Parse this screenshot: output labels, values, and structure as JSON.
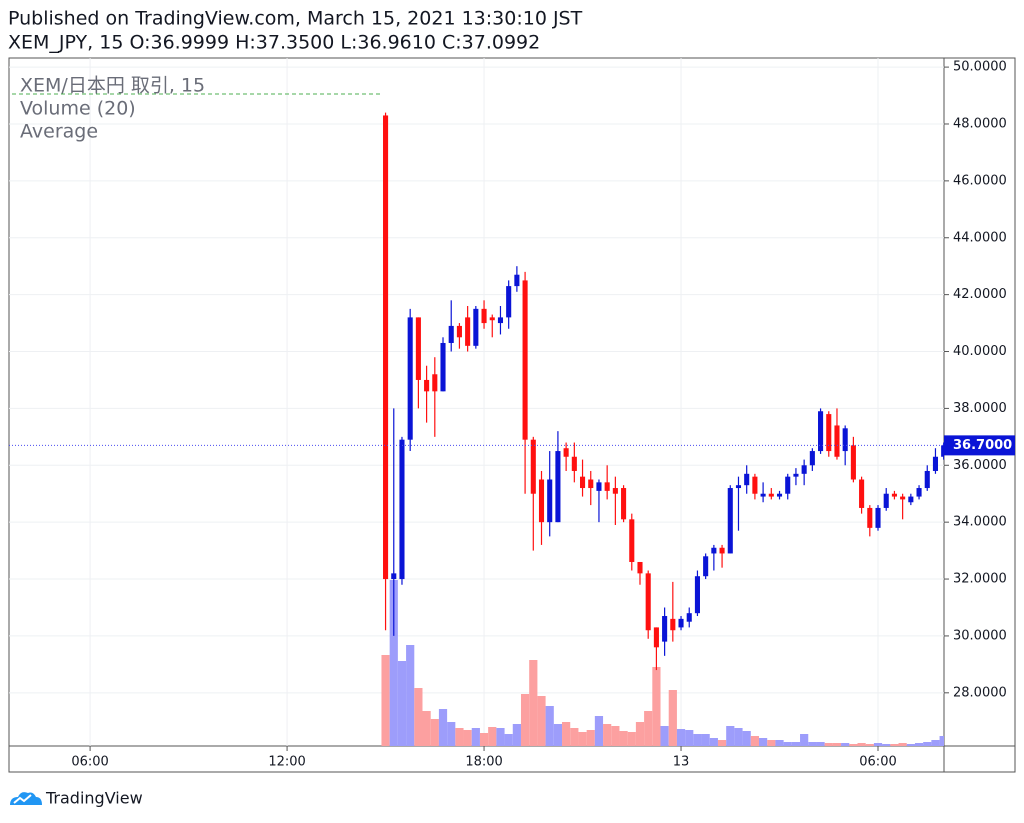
{
  "chart_data": {
    "type": "candlestick",
    "title": "Published on TradingView.com, March 15, 2021 13:30:10 JST",
    "subtitle": "XEM_JPY, 15 O:36.9999 H:37.3500 L:36.9610 C:37.0992",
    "legend": [
      "XEM/日本円 取引, 15",
      "Volume (20)",
      "Average"
    ],
    "brand": "TradingView",
    "up_color": "#0a14d6",
    "down_color": "#ff1010",
    "volume_up_color": "#9d9dfb",
    "volume_down_color": "#fca0a0",
    "x": [
      15,
      15.25,
      15.5,
      15.75,
      16,
      16.25,
      16.5,
      16.75,
      17,
      17.25,
      17.5,
      17.75,
      18,
      18.25,
      18.5,
      18.75,
      19,
      19.25,
      19.5,
      19.75,
      20,
      20.25,
      20.5,
      20.75,
      21,
      21.25,
      21.5,
      21.75,
      22,
      22.25,
      22.5,
      22.75,
      23,
      23.25,
      23.5,
      23.75,
      24,
      24.25,
      24.5,
      24.75,
      25,
      25.25,
      25.5,
      25.75,
      26,
      26.25,
      26.5,
      26.75,
      27,
      27.25,
      27.5,
      27.75,
      28,
      28.25,
      28.5,
      28.75,
      29,
      29.25,
      29.5,
      29.75,
      30,
      30.25,
      30.5,
      30.75,
      31,
      31.25,
      31.5,
      31.75,
      32
    ],
    "open": [
      48.3,
      32.0,
      32.0,
      36.9,
      41.2,
      39.0,
      39.2,
      38.6,
      40.3,
      40.9,
      41.2,
      40.2,
      41.5,
      41.2,
      41.0,
      41.2,
      42.3,
      42.5,
      36.9,
      35.5,
      34.0,
      34.0,
      36.6,
      36.3,
      35.6,
      35.5,
      35.1,
      35.4,
      35.2,
      35.2,
      34.1,
      32.6,
      32.2,
      30.3,
      29.8,
      30.6,
      30.3,
      30.5,
      30.8,
      32.1,
      32.9,
      33.1,
      32.9,
      35.2,
      35.3,
      35.6,
      34.9,
      35.0,
      34.9,
      35.0,
      35.6,
      35.7,
      36.0,
      36.5,
      37.8,
      37.4,
      36.5,
      36.7,
      35.5,
      34.5,
      33.8,
      34.5,
      35.0,
      34.9,
      34.7,
      34.9,
      35.2,
      35.8,
      36.3
    ],
    "high": [
      48.4,
      38.0,
      37.0,
      41.5,
      41.2,
      39.5,
      39.8,
      40.5,
      41.8,
      41.0,
      41.6,
      41.6,
      41.8,
      41.3,
      41.6,
      42.5,
      43.0,
      42.8,
      37.0,
      35.8,
      36.5,
      37.2,
      36.8,
      36.8,
      36.2,
      35.8,
      35.5,
      36.0,
      35.6,
      35.3,
      34.3,
      32.6,
      32.3,
      30.3,
      31.0,
      31.9,
      30.7,
      31.0,
      32.3,
      32.9,
      33.2,
      33.2,
      35.3,
      35.6,
      36.0,
      35.7,
      35.4,
      35.2,
      35.1,
      35.7,
      35.9,
      36.2,
      36.6,
      38.0,
      37.9,
      38.0,
      37.4,
      37.0,
      35.6,
      34.6,
      34.6,
      35.2,
      35.1,
      35.0,
      35.0,
      35.3,
      36.0,
      36.6,
      36.8
    ],
    "low": [
      30.2,
      30.0,
      31.8,
      36.5,
      38.0,
      37.5,
      37.0,
      38.6,
      40.0,
      40.1,
      40.0,
      40.1,
      40.8,
      40.5,
      40.6,
      40.8,
      42.1,
      35.0,
      33.0,
      33.2,
      33.5,
      34.0,
      35.8,
      35.4,
      34.9,
      34.6,
      34.0,
      34.8,
      33.9,
      34.0,
      32.3,
      31.8,
      29.9,
      28.8,
      29.3,
      29.8,
      30.2,
      30.3,
      30.7,
      32.0,
      32.3,
      32.4,
      32.9,
      33.7,
      35.0,
      34.8,
      34.7,
      34.8,
      34.8,
      34.8,
      35.3,
      35.3,
      35.8,
      36.4,
      36.3,
      36.2,
      36.0,
      35.4,
      34.3,
      33.5,
      33.7,
      34.4,
      34.8,
      34.1,
      34.6,
      34.8,
      35.1,
      35.7,
      36.2
    ],
    "close": [
      32.0,
      32.2,
      36.9,
      41.2,
      39.0,
      38.6,
      38.6,
      40.3,
      40.9,
      40.5,
      40.2,
      41.5,
      41.0,
      41.1,
      41.2,
      42.3,
      42.7,
      36.9,
      35.0,
      34.0,
      35.5,
      36.5,
      36.3,
      35.8,
      35.2,
      35.2,
      35.4,
      35.1,
      35.0,
      34.1,
      32.6,
      32.2,
      30.2,
      29.6,
      30.7,
      30.2,
      30.6,
      30.8,
      32.1,
      32.8,
      33.1,
      32.9,
      35.2,
      35.3,
      35.7,
      35.0,
      35.0,
      34.9,
      35.0,
      35.6,
      35.7,
      36.0,
      36.5,
      37.9,
      36.5,
      36.3,
      37.3,
      35.5,
      34.5,
      33.8,
      34.5,
      35.0,
      34.9,
      34.8,
      34.9,
      35.2,
      35.8,
      36.3,
      36.7
    ],
    "volume": [
      91,
      166,
      85,
      101,
      58,
      35,
      27,
      37,
      24,
      18,
      16,
      18,
      13,
      19,
      18,
      12,
      22,
      52,
      86,
      50,
      40,
      22,
      24,
      18,
      14,
      16,
      30,
      22,
      20,
      15,
      14,
      24,
      35,
      79,
      20,
      56,
      17,
      16,
      12,
      12,
      8,
      6,
      20,
      18,
      15,
      10,
      8,
      6,
      6,
      4,
      4,
      12,
      4,
      4,
      3,
      3,
      3,
      2,
      3,
      2,
      3,
      2,
      2,
      3,
      2,
      3,
      4,
      6,
      10
    ],
    "xlim": [
      3.53,
      32.01
    ],
    "xticks": [
      {
        "value": 6,
        "label": "06:00"
      },
      {
        "value": 12,
        "label": "12:00"
      },
      {
        "value": 18,
        "label": "18:00"
      },
      {
        "value": 24,
        "label": "13"
      },
      {
        "value": 30,
        "label": "06:00"
      }
    ],
    "ylim": [
      26.13,
      50.32
    ],
    "yticks": [
      {
        "value": 28,
        "label": "28.0000"
      },
      {
        "value": 30,
        "label": "30.0000"
      },
      {
        "value": 32,
        "label": "32.0000"
      },
      {
        "value": 34,
        "label": "34.0000"
      },
      {
        "value": 36,
        "label": "36.0000"
      },
      {
        "value": 38,
        "label": "38.0000"
      },
      {
        "value": 40,
        "label": "40.0000"
      },
      {
        "value": 42,
        "label": "42.0000"
      },
      {
        "value": 44,
        "label": "44.0000"
      },
      {
        "value": 46,
        "label": "46.0000"
      },
      {
        "value": 48,
        "label": "48.0000"
      },
      {
        "value": 50,
        "label": "50.0000"
      }
    ],
    "last_price": {
      "value": 36.7,
      "label": "36.7000"
    },
    "grid": true
  }
}
